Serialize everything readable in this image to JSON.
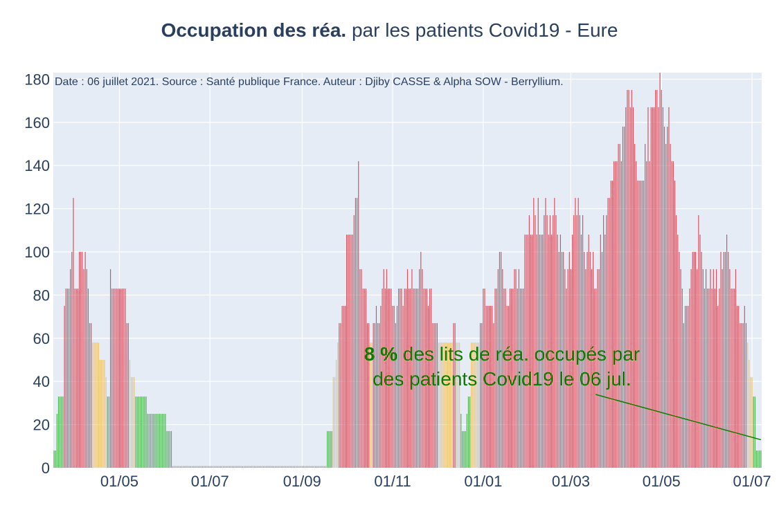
{
  "title": {
    "bold": "Occupation des réa.",
    "rest": " par les patients Covid19 - Eure"
  },
  "source_note": "Date : 06 juillet 2021. Source : Santé publique France. Auteur : Djiby CASSE & Alpha SOW - Berryllium.",
  "annotation": {
    "value": "8",
    "pct": " %",
    "line1": " des lits de réa. occupés par",
    "line2": "des patients Covid19 le 06 jul."
  },
  "colors": {
    "red": "#d94f5c",
    "orange": "#efc26d",
    "green": "#4caf50",
    "grey": "#9e9e9e",
    "plot_bg": "#e5ecf6",
    "grid": "#ffffff",
    "annotation": "#0a7d00"
  },
  "chart_data": {
    "type": "bar",
    "title": "Occupation des réa. par les patients Covid19 - Eure",
    "xlabel": "",
    "ylabel": "",
    "ylim": [
      0,
      183
    ],
    "yticks": [
      0,
      20,
      40,
      60,
      80,
      100,
      120,
      140,
      160,
      180
    ],
    "xrange": [
      "2020-03-18",
      "2021-07-07"
    ],
    "xticks": [
      {
        "date": "2020-05-01",
        "label": "01/05"
      },
      {
        "date": "2020-07-01",
        "label": "01/07"
      },
      {
        "date": "2020-09-01",
        "label": "01/09"
      },
      {
        "date": "2020-11-01",
        "label": "01/11"
      },
      {
        "date": "2021-01-01",
        "label": "01/01"
      },
      {
        "date": "2021-03-01",
        "label": "01/03"
      },
      {
        "date": "2021-05-01",
        "label": "01/05"
      },
      {
        "date": "2021-07-01",
        "label": "01/07"
      }
    ],
    "color_rule": "green < 40 %, orange 40–60 %, red > 60 %",
    "segments": [
      {
        "start": "2020-03-18",
        "end": "2020-03-24",
        "values": [
          8,
          8,
          25,
          33,
          33,
          33,
          33
        ]
      },
      {
        "start": "2020-03-25",
        "end": "2020-04-10",
        "values": [
          75,
          83,
          83,
          83,
          92,
          100,
          125,
          83,
          83,
          83,
          100,
          100,
          100,
          92,
          100,
          92,
          83
        ]
      },
      {
        "start": "2020-04-11",
        "end": "2020-04-22",
        "values": [
          67,
          67,
          58,
          58,
          58,
          58,
          58,
          50,
          50,
          50,
          50,
          42
        ]
      },
      {
        "start": "2020-04-23",
        "end": "2020-04-24",
        "values": [
          33,
          33
        ]
      },
      {
        "start": "2020-04-25",
        "end": "2020-05-05",
        "values": [
          92,
          83,
          83,
          83,
          83,
          83,
          83,
          83,
          83,
          83,
          83
        ]
      },
      {
        "start": "2020-05-06",
        "end": "2020-05-11",
        "values": [
          67,
          67,
          50,
          42,
          42,
          42
        ]
      },
      {
        "start": "2020-05-12",
        "end": "2020-06-05",
        "values": [
          33,
          33,
          33,
          33,
          33,
          33,
          33,
          33,
          25,
          25,
          25,
          25,
          25,
          25,
          25,
          25,
          25,
          25,
          25,
          25,
          25,
          17,
          17,
          17,
          17
        ]
      },
      {
        "start": "2020-06-06",
        "end": "2020-09-17",
        "constant": 0.8
      },
      {
        "start": "2020-09-18",
        "end": "2020-09-21",
        "values": [
          17,
          17,
          17,
          17
        ]
      },
      {
        "start": "2020-09-22",
        "end": "2020-09-30",
        "values": [
          42,
          42,
          50,
          58,
          67,
          67,
          75,
          75,
          75
        ]
      },
      {
        "start": "2020-10-01",
        "end": "2020-10-14",
        "values": [
          108,
          108,
          108,
          108,
          108,
          117,
          125,
          125,
          142,
          92,
          92,
          83,
          83,
          83
        ]
      },
      {
        "start": "2020-10-15",
        "end": "2020-10-24",
        "values": [
          67,
          67,
          58,
          58,
          67,
          67,
          75,
          67,
          67,
          75
        ]
      },
      {
        "start": "2020-10-25",
        "end": "2020-10-31",
        "values": [
          83,
          92,
          83,
          92,
          83,
          83,
          83
        ]
      },
      {
        "start": "2020-11-01",
        "end": "2020-11-04",
        "values": [
          75,
          75,
          67,
          75
        ]
      },
      {
        "start": "2020-11-05",
        "end": "2020-11-27",
        "values": [
          83,
          83,
          83,
          75,
          83,
          83,
          92,
          83,
          83,
          92,
          83,
          83,
          83,
          83,
          92,
          100,
          92,
          83,
          83,
          83,
          75,
          83,
          83
        ]
      },
      {
        "start": "2020-11-28",
        "end": "2020-12-16",
        "values": [
          67,
          67,
          67,
          67,
          58,
          58,
          58,
          58,
          58,
          58,
          58,
          58,
          58,
          58,
          67,
          67,
          58,
          58,
          58
        ]
      },
      {
        "start": "2020-12-17",
        "end": "2020-12-23",
        "values": [
          25,
          17,
          17,
          17,
          25,
          33,
          33
        ]
      },
      {
        "start": "2020-12-24",
        "end": "2020-12-31",
        "values": [
          58,
          58,
          58,
          58,
          58,
          58,
          67,
          67
        ]
      },
      {
        "start": "2021-01-01",
        "end": "2021-01-28",
        "values": [
          83,
          83,
          75,
          75,
          75,
          75,
          75,
          67,
          83,
          83,
          92,
          100,
          100,
          92,
          83,
          83,
          75,
          75,
          83,
          83,
          83,
          92,
          92,
          83,
          92,
          83,
          83,
          83
        ]
      },
      {
        "start": "2021-01-29",
        "end": "2021-03-29",
        "values": [
          108,
          108,
          108,
          117,
          108,
          108,
          125,
          117,
          108,
          125,
          108,
          108,
          108,
          117,
          125,
          117,
          108,
          117,
          108,
          117,
          125,
          117,
          108,
          100,
          108,
          100,
          100,
          92,
          83,
          92,
          100,
          92,
          108,
          117,
          125,
          117,
          125,
          117,
          108,
          117,
          100,
          92,
          100,
          108,
          100,
          92,
          100,
          83,
          83,
          92,
          92,
          108,
          100,
          117,
          108,
          117,
          125,
          125,
          133,
          133
        ]
      },
      {
        "start": "2021-03-30",
        "end": "2021-05-09",
        "values": [
          142,
          142,
          142,
          150,
          150,
          142,
          158,
          158,
          167,
          175,
          175,
          167,
          175,
          167,
          150,
          142,
          133,
          133,
          133,
          133,
          133,
          150,
          142,
          167,
          142,
          167,
          167,
          167,
          175,
          175,
          167,
          183,
          175,
          167,
          158,
          150,
          158,
          167,
          150,
          142,
          142
        ]
      },
      {
        "start": "2021-05-10",
        "end": "2021-05-15",
        "values": [
          133,
          117,
          108,
          100,
          92,
          83
        ]
      },
      {
        "start": "2021-05-16",
        "end": "2021-05-19",
        "values": [
          67,
          75,
          75,
          75
        ]
      },
      {
        "start": "2021-05-20",
        "end": "2021-06-10",
        "values": [
          83,
          92,
          100,
          100,
          100,
          92,
          117,
          108,
          100,
          92,
          83,
          92,
          83,
          83,
          92,
          83,
          92,
          83,
          92,
          75,
          83,
          100
        ]
      },
      {
        "start": "2021-06-11",
        "end": "2021-06-20",
        "values": [
          92,
          100,
          100,
          108,
          100,
          92,
          83,
          83,
          83,
          92
        ]
      },
      {
        "start": "2021-06-21",
        "end": "2021-06-30",
        "values": [
          75,
          75,
          67,
          67,
          67,
          75,
          67,
          58,
          50,
          42
        ]
      },
      {
        "start": "2021-07-01",
        "end": "2021-07-07",
        "values": [
          42,
          33,
          33,
          8,
          8,
          8,
          8
        ]
      }
    ],
    "colors_by_value": [
      {
        "max": 40,
        "color": "green"
      },
      {
        "max": 62,
        "color": "orange"
      },
      {
        "max": 999,
        "color": "red"
      }
    ],
    "annotation_point": {
      "date": "2021-07-07",
      "value": 13
    }
  }
}
